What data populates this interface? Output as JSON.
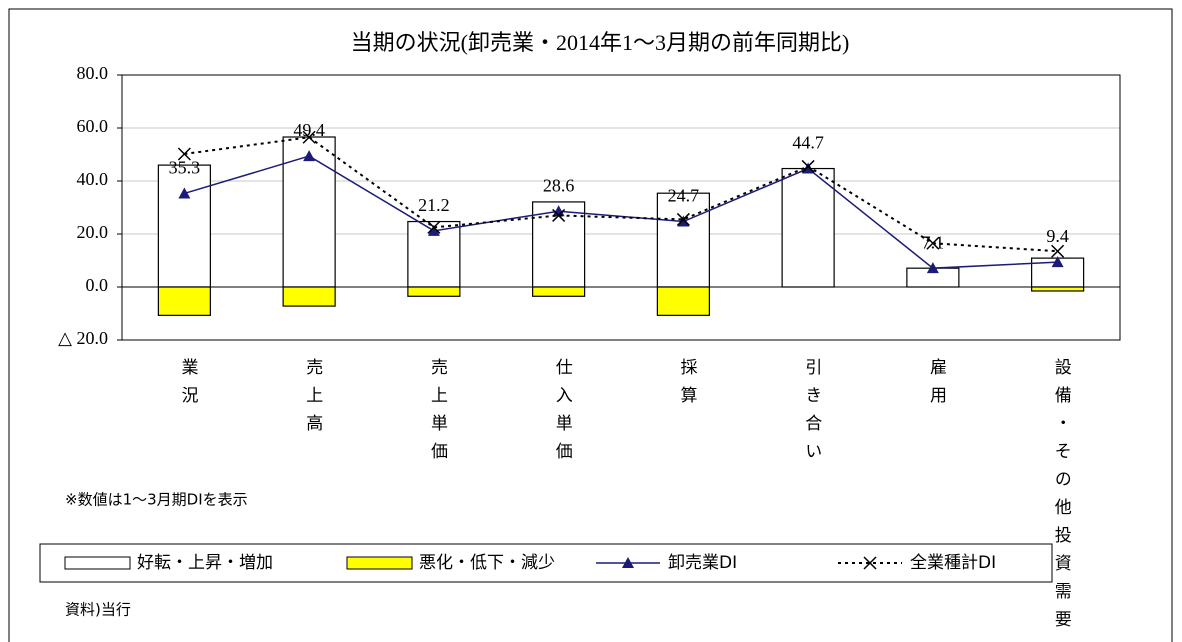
{
  "chart_data": {
    "type": "bar",
    "title": "当期の状況(卸売業・2014年1～3月期の前年同期比)",
    "categories": [
      "業況",
      "売上高",
      "売上単価",
      "仕入単価",
      "採算",
      "引き合い",
      "雇用",
      "設備・その他投資需要"
    ],
    "series": [
      {
        "name": "好転・上昇・増加",
        "type": "bar",
        "color": "#ffffff",
        "values": [
          46.0,
          56.6,
          24.7,
          32.1,
          35.4,
          44.7,
          7.1,
          10.9
        ]
      },
      {
        "name": "悪化・低下・減少",
        "type": "bar",
        "color": "#ffff00",
        "values": [
          -10.7,
          -7.2,
          -3.5,
          -3.5,
          -10.7,
          0,
          0,
          -1.5
        ]
      },
      {
        "name": "卸売業DI",
        "type": "line",
        "color": "#1c1c78",
        "marker": "triangle",
        "values": [
          35.3,
          49.4,
          21.2,
          28.6,
          24.7,
          44.7,
          7.1,
          9.4
        ],
        "data_labels": true
      },
      {
        "name": "全業種計DI",
        "type": "line",
        "color": "#000000",
        "dashed": true,
        "marker": "x",
        "values": [
          50.2,
          56.5,
          22.5,
          27.0,
          25.5,
          45.5,
          16.5,
          13.5
        ]
      }
    ],
    "ylim": [
      -20,
      80
    ],
    "yticks": [
      {
        "value": -20,
        "label": "△ 20.0"
      },
      {
        "value": 0,
        "label": "0.0"
      },
      {
        "value": 20,
        "label": "20.0"
      },
      {
        "value": 40,
        "label": "40.0"
      },
      {
        "value": 60,
        "label": "60.0"
      },
      {
        "value": 80,
        "label": "80.0"
      }
    ],
    "grid": true,
    "note": "※数値は1～3月期DIを表示",
    "source": "資料)当行",
    "legend": "bottom"
  }
}
